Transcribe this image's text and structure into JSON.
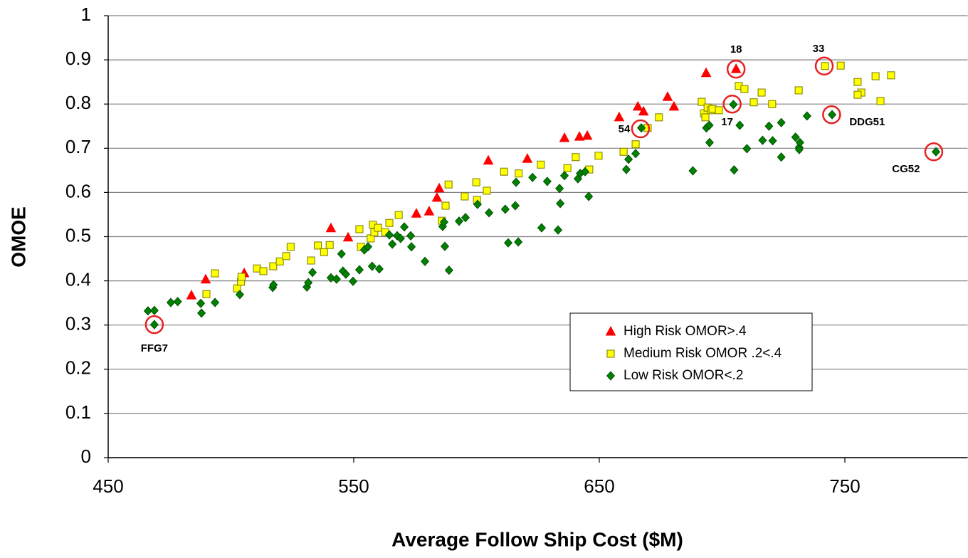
{
  "chart_data": {
    "type": "scatter",
    "x_label": "Average Follow Ship Cost ($M)",
    "y_label": "OMOE",
    "xlim": [
      450,
      800
    ],
    "ylim": [
      0,
      1
    ],
    "xticks": [
      450,
      550,
      650,
      750
    ],
    "yticks": [
      0,
      0.1,
      0.2,
      0.3,
      0.4,
      0.5,
      0.6,
      0.7,
      0.8,
      0.9,
      1
    ],
    "grid": true,
    "legend": "lower right",
    "series": [
      {
        "name": "High Risk OMOR>.4",
        "color": "#ff0000",
        "marker": "triangle",
        "x": [
          483.9,
          489.7,
          505.4,
          540.7,
          547.7,
          575.5,
          580.7,
          583.9,
          584.8,
          604.8,
          620.7,
          635.8,
          641.9,
          645.1,
          658.1,
          665.7,
          668.0,
          677.8,
          680.4,
          693.5,
          705.7
        ],
        "values": [
          0.367,
          0.403,
          0.417,
          0.519,
          0.498,
          0.552,
          0.557,
          0.588,
          0.609,
          0.672,
          0.676,
          0.723,
          0.726,
          0.728,
          0.77,
          0.794,
          0.783,
          0.816,
          0.794,
          0.87,
          0.879
        ]
      },
      {
        "name": "Medium Risk OMOR .2<.4",
        "color": "#ffff00",
        "marker": "square",
        "x": [
          493.5,
          490.0,
          502.5,
          504.1,
          504.3,
          510.6,
          513.2,
          517.2,
          519.9,
          522.5,
          524.3,
          532.6,
          535.4,
          537.9,
          540.2,
          552.3,
          552.9,
          556.9,
          557.8,
          558.4,
          559.9,
          562.8,
          564.5,
          568.3,
          585.9,
          587.4,
          588.6,
          595.2,
          599.9,
          604.2,
          600.2,
          611.2,
          617.2,
          626.2,
          637.0,
          640.4,
          645.9,
          649.7,
          659.9,
          664.8,
          669.7,
          674.3,
          691.7,
          692.6,
          693.2,
          694.1,
          695.5,
          696.1,
          698.7,
          706.8,
          709.1,
          712.9,
          716.1,
          720.4,
          731.2,
          741.9,
          748.3,
          755.2,
          756.7,
          755.2,
          762.5,
          764.5,
          768.8
        ],
        "values": [
          0.417,
          0.37,
          0.383,
          0.398,
          0.409,
          0.428,
          0.422,
          0.433,
          0.444,
          0.456,
          0.477,
          0.446,
          0.48,
          0.465,
          0.481,
          0.517,
          0.477,
          0.496,
          0.527,
          0.51,
          0.52,
          0.51,
          0.531,
          0.549,
          0.536,
          0.57,
          0.618,
          0.591,
          0.623,
          0.604,
          0.583,
          0.647,
          0.643,
          0.663,
          0.655,
          0.68,
          0.652,
          0.683,
          0.692,
          0.709,
          0.746,
          0.77,
          0.805,
          0.779,
          0.77,
          0.792,
          0.786,
          0.789,
          0.786,
          0.841,
          0.834,
          0.804,
          0.826,
          0.8,
          0.831,
          0.886,
          0.887,
          0.85,
          0.826,
          0.821,
          0.863,
          0.807,
          0.865
        ]
      },
      {
        "name": "Low Risk OMOR<.2",
        "color": "#008000",
        "marker": "diamond",
        "x": [
          466.2,
          468.8,
          468.8,
          475.5,
          478.3,
          487.7,
          488.0,
          493.5,
          503.6,
          517.0,
          517.3,
          530.9,
          531.5,
          533.2,
          540.7,
          543.0,
          545.0,
          545.6,
          546.8,
          549.7,
          552.3,
          554.3,
          555.8,
          557.5,
          560.4,
          564.5,
          565.7,
          567.7,
          569.1,
          570.6,
          573.2,
          573.5,
          579.0,
          586.2,
          586.8,
          587.1,
          588.8,
          592.9,
          595.5,
          600.4,
          605.1,
          612.9,
          611.7,
          615.8,
          616.1,
          617.0,
          622.8,
          626.5,
          628.8,
          633.2,
          633.8,
          634.1,
          635.8,
          641.3,
          642.2,
          644.2,
          645.7,
          661.0,
          661.9,
          664.8,
          667.1,
          688.1,
          693.6,
          694.8,
          694.9,
          704.9,
          704.6,
          707.2,
          710.1,
          716.5,
          719.1,
          720.6,
          724.1,
          724.1,
          729.9,
          731.4,
          731.7,
          731.4,
          734.6,
          744.8,
          787.1
        ],
        "values": [
          0.332,
          0.333,
          0.301,
          0.351,
          0.353,
          0.349,
          0.327,
          0.351,
          0.369,
          0.385,
          0.391,
          0.386,
          0.396,
          0.419,
          0.407,
          0.404,
          0.461,
          0.422,
          0.415,
          0.399,
          0.425,
          0.47,
          0.477,
          0.433,
          0.427,
          0.504,
          0.483,
          0.502,
          0.496,
          0.522,
          0.502,
          0.477,
          0.444,
          0.523,
          0.533,
          0.478,
          0.424,
          0.535,
          0.543,
          0.573,
          0.554,
          0.486,
          0.562,
          0.57,
          0.623,
          0.488,
          0.634,
          0.52,
          0.625,
          0.515,
          0.609,
          0.575,
          0.638,
          0.631,
          0.643,
          0.647,
          0.591,
          0.652,
          0.675,
          0.688,
          0.746,
          0.649,
          0.746,
          0.752,
          0.713,
          0.651,
          0.799,
          0.752,
          0.699,
          0.718,
          0.75,
          0.717,
          0.758,
          0.68,
          0.725,
          0.702,
          0.713,
          0.697,
          0.773,
          0.776,
          0.692
        ]
      }
    ],
    "annotations": [
      {
        "text": "FFG7",
        "x": 468.8,
        "y": 0.301
      },
      {
        "text": "18",
        "x": 705.7,
        "y": 0.879
      },
      {
        "text": "33",
        "x": 741.6,
        "y": 0.886
      },
      {
        "text": "17",
        "x": 704.1,
        "y": 0.8
      },
      {
        "text": "54",
        "x": 666.8,
        "y": 0.744
      },
      {
        "text": "DDG51",
        "x": 744.6,
        "y": 0.776
      },
      {
        "text": "CG52",
        "x": 786.2,
        "y": 0.692
      }
    ]
  }
}
